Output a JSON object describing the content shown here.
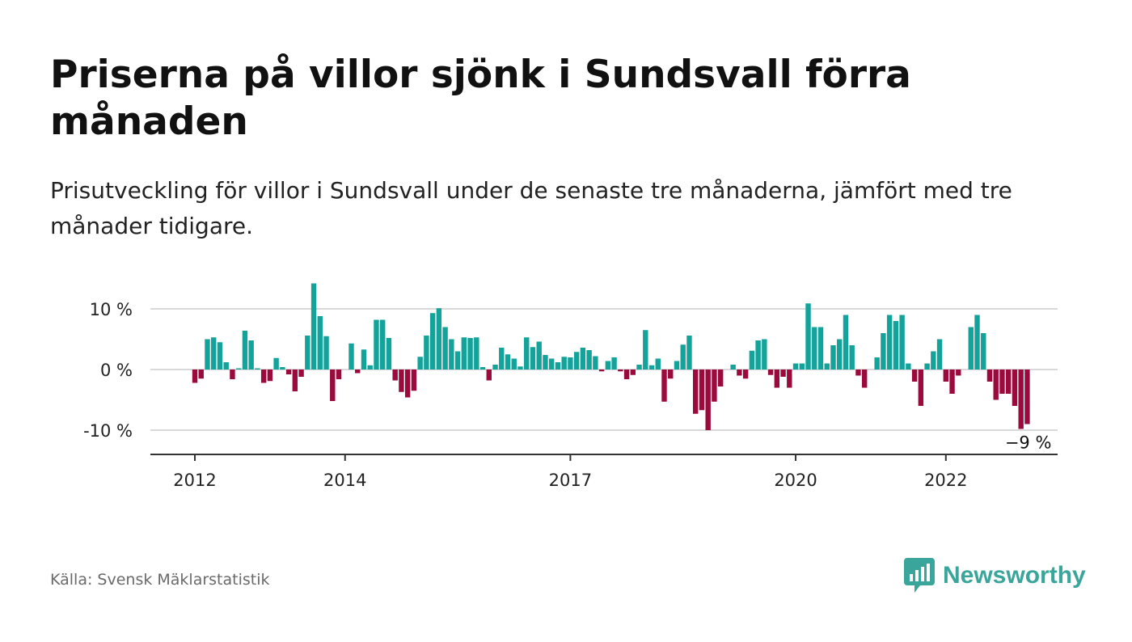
{
  "header": {
    "title": "Priserna på villor sjönk i Sundsvall förra månaden",
    "subtitle": "Prisutveckling för villor i Sundsvall under de senaste tre månaderna, jämfört med tre månader tidigare."
  },
  "footer": {
    "source": "Källa: Svensk Mäklarstatistik",
    "brand": "Newsworthy",
    "brand_icon": "newsworthy-logo-icon"
  },
  "colors": {
    "positive": "#13a39a",
    "negative": "#9b0a3c",
    "gridline": "#d9d9d9",
    "axis": "#333333",
    "brand": "#3aa59a"
  },
  "chart_data": {
    "type": "bar",
    "title": "",
    "xlabel": "",
    "ylabel": "",
    "unit": "%",
    "ylim": [
      -14,
      15
    ],
    "y_ticks": [
      {
        "value": 10,
        "label": "10 %"
      },
      {
        "value": 0,
        "label": "0 %"
      },
      {
        "value": -10,
        "label": "-10 %"
      }
    ],
    "x_ticks": [
      {
        "date": "2012-01",
        "label": "2012"
      },
      {
        "date": "2014-01",
        "label": "2014"
      },
      {
        "date": "2017-01",
        "label": "2017"
      },
      {
        "date": "2020-01",
        "label": "2020"
      },
      {
        "date": "2022-01",
        "label": "2022"
      }
    ],
    "grid": true,
    "legend": false,
    "start_month": "2012-01",
    "end_month": "2023-02",
    "values": [
      -2.2,
      -1.5,
      5.0,
      5.3,
      4.5,
      1.2,
      -1.6,
      0.2,
      6.4,
      4.8,
      0.2,
      -2.2,
      -1.9,
      1.9,
      0.4,
      -0.8,
      -3.6,
      -1.2,
      5.6,
      14.2,
      8.8,
      5.5,
      -5.2,
      -1.6,
      0.0,
      4.3,
      -0.6,
      3.3,
      0.7,
      8.2,
      8.2,
      5.2,
      -1.8,
      -3.7,
      -4.6,
      -3.5,
      2.1,
      5.6,
      9.3,
      10.1,
      7.0,
      5.0,
      3.0,
      5.3,
      5.2,
      5.3,
      0.4,
      -1.8,
      0.8,
      3.6,
      2.5,
      1.8,
      0.5,
      5.3,
      3.7,
      4.6,
      2.4,
      1.8,
      1.2,
      2.1,
      2.0,
      2.9,
      3.6,
      3.2,
      2.2,
      -0.3,
      1.4,
      2.0,
      -0.3,
      -1.6,
      -0.9,
      0.8,
      6.5,
      0.7,
      1.8,
      -5.3,
      -1.5,
      1.4,
      4.1,
      5.6,
      -7.3,
      -6.7,
      -10.0,
      -5.3,
      -2.8,
      0.0,
      0.8,
      -1.0,
      -1.5,
      3.1,
      4.8,
      5.0,
      -0.9,
      -3.0,
      -1.2,
      -3.0,
      1.0,
      1.0,
      10.9,
      7.0,
      7.0,
      1.0,
      4.0,
      5.0,
      9.0,
      4.0,
      -1.0,
      -3.0,
      0.0,
      2.0,
      6.0,
      9.0,
      8.0,
      9.0,
      1.0,
      -2.0,
      -6.0,
      1.0,
      3.0,
      5.0,
      -2.0,
      -4.0,
      -1.0,
      0.0,
      7.0,
      9.0,
      6.0,
      -2.0,
      -5.0,
      -4.0,
      -4.0,
      -6.0,
      -9.8,
      -9.0
    ],
    "last_value_label": "−9 %"
  }
}
